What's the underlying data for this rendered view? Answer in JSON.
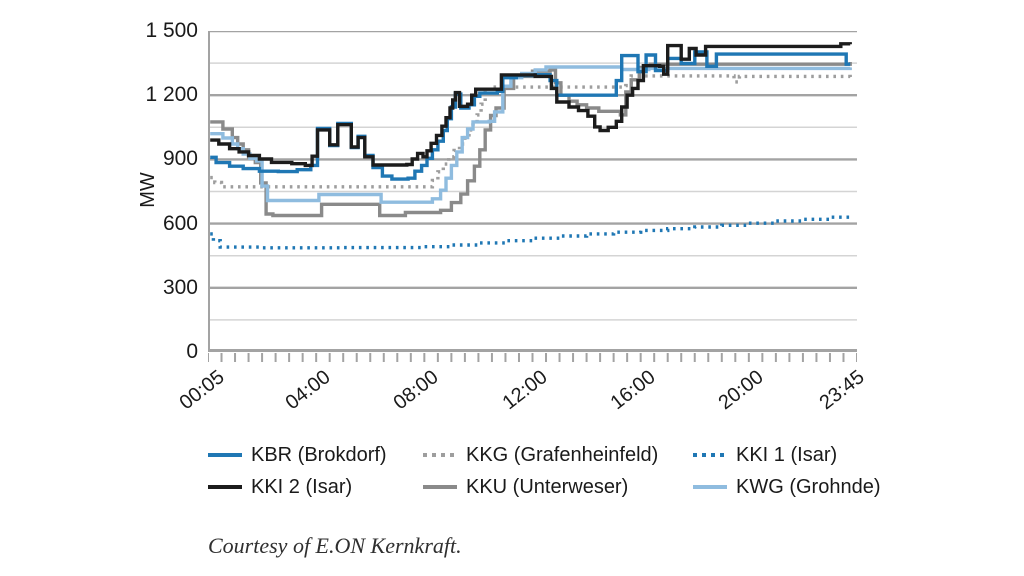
{
  "caption": "Courtesy of E.ON Kernkraft.",
  "chart_data": {
    "type": "line",
    "title": "",
    "xlabel": "",
    "ylabel": "MW",
    "ylim": [
      0,
      1500
    ],
    "xlim_hours": [
      0,
      24
    ],
    "grid": true,
    "legend_position": "bottom",
    "y_major": [
      300,
      600,
      900,
      1200,
      1500
    ],
    "y_minor": [
      150,
      450,
      750,
      1050,
      1350
    ],
    "y_ticks": [
      {
        "label": "1 500",
        "value": 1500
      },
      {
        "label": "1 200",
        "value": 1200
      },
      {
        "label": "900",
        "value": 900
      },
      {
        "label": "600",
        "value": 600
      },
      {
        "label": "300",
        "value": 300
      },
      {
        "label": "0",
        "value": 0
      }
    ],
    "x_tick_interval_minutes": 30,
    "x_labels": [
      {
        "label": "00:05",
        "t": 0.083
      },
      {
        "label": "04:00",
        "t": 4
      },
      {
        "label": "08:00",
        "t": 8
      },
      {
        "label": "12:00",
        "t": 12
      },
      {
        "label": "16:00",
        "t": 16
      },
      {
        "label": "20:00",
        "t": 20
      },
      {
        "label": "23:45",
        "t": 23.75
      }
    ],
    "axis_color": "#a3a3a3",
    "grid_major_color": "#a3a3a3",
    "grid_minor_color": "#d4d4d4",
    "draw_order": [
      "kkg",
      "kku",
      "kwg",
      "kki1",
      "kbr",
      "kki2"
    ],
    "series": [
      {
        "id": "kbr",
        "name": "KBR (Brokdorf)",
        "color": "#1f77b4",
        "style": "solid",
        "points": [
          [
            0.08,
            910
          ],
          [
            0.3,
            885
          ],
          [
            0.8,
            868
          ],
          [
            1.3,
            857
          ],
          [
            1.9,
            845
          ],
          [
            2.6,
            843
          ],
          [
            3.3,
            852
          ],
          [
            3.8,
            872
          ],
          [
            4.05,
            1045
          ],
          [
            4.5,
            965
          ],
          [
            4.8,
            1068
          ],
          [
            5.3,
            955
          ],
          [
            5.55,
            1008
          ],
          [
            5.8,
            918
          ],
          [
            6.1,
            862
          ],
          [
            6.45,
            822
          ],
          [
            6.8,
            808
          ],
          [
            7.4,
            812
          ],
          [
            7.65,
            845
          ],
          [
            7.9,
            872
          ],
          [
            8.1,
            905
          ],
          [
            8.3,
            945
          ],
          [
            8.5,
            985
          ],
          [
            8.7,
            1035
          ],
          [
            8.85,
            1090
          ],
          [
            9.0,
            1145
          ],
          [
            9.15,
            1205
          ],
          [
            9.35,
            1140
          ],
          [
            9.65,
            1155
          ],
          [
            9.85,
            1195
          ],
          [
            10.05,
            1210
          ],
          [
            10.7,
            1218
          ],
          [
            10.9,
            1282
          ],
          [
            11.4,
            1292
          ],
          [
            12.1,
            1296
          ],
          [
            12.65,
            1268
          ],
          [
            12.9,
            1200
          ],
          [
            14.9,
            1200
          ],
          [
            15.1,
            1268
          ],
          [
            15.3,
            1385
          ],
          [
            15.9,
            1310
          ],
          [
            16.2,
            1388
          ],
          [
            16.55,
            1315
          ],
          [
            17.0,
            1372
          ],
          [
            17.5,
            1348
          ],
          [
            18.0,
            1402
          ],
          [
            18.45,
            1335
          ],
          [
            18.8,
            1392
          ],
          [
            23.45,
            1392
          ],
          [
            23.6,
            1345
          ],
          [
            23.75,
            1345
          ]
        ]
      },
      {
        "id": "kkg",
        "name": "KKG (Grafenheinfeld)",
        "color": "#9e9e9e",
        "style": "dotted",
        "points": [
          [
            0.08,
            815
          ],
          [
            0.25,
            792
          ],
          [
            0.5,
            772
          ],
          [
            8.1,
            772
          ],
          [
            8.3,
            802
          ],
          [
            8.5,
            842
          ],
          [
            8.7,
            878
          ],
          [
            8.9,
            912
          ],
          [
            9.1,
            942
          ],
          [
            9.3,
            972
          ],
          [
            9.5,
            1002
          ],
          [
            9.65,
            1038
          ],
          [
            9.8,
            1072
          ],
          [
            9.95,
            1108
          ],
          [
            10.1,
            1158
          ],
          [
            10.25,
            1212
          ],
          [
            10.4,
            1238
          ],
          [
            15.45,
            1245
          ],
          [
            15.65,
            1290
          ],
          [
            19.3,
            1290
          ],
          [
            19.45,
            1262
          ],
          [
            19.65,
            1288
          ],
          [
            23.75,
            1282
          ]
        ]
      },
      {
        "id": "kki1",
        "name": "KKI 1 (Isar)",
        "color": "#1f77b4",
        "style": "dotted",
        "points": [
          [
            0.08,
            552
          ],
          [
            0.2,
            520
          ],
          [
            0.45,
            490
          ],
          [
            2,
            487
          ],
          [
            5,
            488
          ],
          [
            8,
            492
          ],
          [
            9,
            500
          ],
          [
            10,
            510
          ],
          [
            11,
            520
          ],
          [
            12,
            532
          ],
          [
            13,
            542
          ],
          [
            14,
            552
          ],
          [
            15,
            560
          ],
          [
            16,
            568
          ],
          [
            17,
            576
          ],
          [
            18,
            584
          ],
          [
            19,
            592
          ],
          [
            20,
            602
          ],
          [
            21,
            612
          ],
          [
            22,
            620
          ],
          [
            23,
            630
          ],
          [
            23.75,
            642
          ]
        ]
      },
      {
        "id": "kki2",
        "name": "KKI 2 (Isar)",
        "color": "#1c1c1c",
        "style": "solid",
        "points": [
          [
            0.08,
            990
          ],
          [
            0.4,
            972
          ],
          [
            0.8,
            950
          ],
          [
            1.15,
            935
          ],
          [
            1.5,
            918
          ],
          [
            1.9,
            902
          ],
          [
            2.35,
            886
          ],
          [
            3.1,
            880
          ],
          [
            3.6,
            872
          ],
          [
            3.85,
            915
          ],
          [
            4.05,
            1038
          ],
          [
            4.5,
            968
          ],
          [
            4.8,
            1062
          ],
          [
            5.3,
            958
          ],
          [
            5.55,
            1002
          ],
          [
            5.8,
            912
          ],
          [
            6.1,
            874
          ],
          [
            7.35,
            876
          ],
          [
            7.55,
            902
          ],
          [
            7.75,
            928
          ],
          [
            7.95,
            912
          ],
          [
            8.1,
            940
          ],
          [
            8.25,
            975
          ],
          [
            8.45,
            1012
          ],
          [
            8.65,
            1055
          ],
          [
            8.8,
            1095
          ],
          [
            8.95,
            1140
          ],
          [
            9.05,
            1178
          ],
          [
            9.15,
            1212
          ],
          [
            9.3,
            1148
          ],
          [
            9.6,
            1158
          ],
          [
            9.75,
            1200
          ],
          [
            9.9,
            1228
          ],
          [
            10.7,
            1228
          ],
          [
            10.85,
            1295
          ],
          [
            11.5,
            1295
          ],
          [
            12.1,
            1288
          ],
          [
            12.7,
            1232
          ],
          [
            12.9,
            1168
          ],
          [
            13.35,
            1145
          ],
          [
            13.7,
            1128
          ],
          [
            14.05,
            1102
          ],
          [
            14.3,
            1052
          ],
          [
            14.5,
            1035
          ],
          [
            14.8,
            1050
          ],
          [
            15.1,
            1078
          ],
          [
            15.3,
            1145
          ],
          [
            15.5,
            1200
          ],
          [
            15.7,
            1232
          ],
          [
            15.9,
            1268
          ],
          [
            16.1,
            1338
          ],
          [
            16.7,
            1335
          ],
          [
            16.85,
            1298
          ],
          [
            17.0,
            1432
          ],
          [
            17.5,
            1368
          ],
          [
            17.8,
            1418
          ],
          [
            18.05,
            1388
          ],
          [
            18.4,
            1428
          ],
          [
            23.25,
            1428
          ],
          [
            23.4,
            1440
          ],
          [
            23.75,
            1438
          ]
        ]
      },
      {
        "id": "kku",
        "name": "KKU (Unterweser)",
        "color": "#8a8a8a",
        "style": "solid",
        "points": [
          [
            0.08,
            1075
          ],
          [
            0.55,
            1042
          ],
          [
            0.9,
            1002
          ],
          [
            1.1,
            972
          ],
          [
            1.3,
            945
          ],
          [
            1.5,
            912
          ],
          [
            1.75,
            885
          ],
          [
            1.95,
            790
          ],
          [
            2.15,
            645
          ],
          [
            2.4,
            638
          ],
          [
            4.2,
            690
          ],
          [
            6.35,
            638
          ],
          [
            7.3,
            652
          ],
          [
            8.6,
            662
          ],
          [
            9.0,
            698
          ],
          [
            9.35,
            738
          ],
          [
            9.6,
            800
          ],
          [
            9.85,
            868
          ],
          [
            10.05,
            945
          ],
          [
            10.25,
            1038
          ],
          [
            10.45,
            1105
          ],
          [
            10.65,
            1140
          ],
          [
            10.95,
            1232
          ],
          [
            11.3,
            1288
          ],
          [
            12.0,
            1312
          ],
          [
            12.65,
            1318
          ],
          [
            12.85,
            1258
          ],
          [
            13.05,
            1200
          ],
          [
            13.35,
            1172
          ],
          [
            13.65,
            1155
          ],
          [
            14.0,
            1140
          ],
          [
            14.45,
            1125
          ],
          [
            15.25,
            1108
          ],
          [
            15.45,
            1215
          ],
          [
            15.65,
            1272
          ],
          [
            15.95,
            1330
          ],
          [
            16.35,
            1345
          ],
          [
            23.75,
            1355
          ]
        ]
      },
      {
        "id": "kwg",
        "name": "KWG (Grohnde)",
        "color": "#8fbcdf",
        "style": "solid",
        "points": [
          [
            0.08,
            1020
          ],
          [
            0.55,
            1000
          ],
          [
            0.9,
            972
          ],
          [
            1.1,
            950
          ],
          [
            1.3,
            925
          ],
          [
            1.55,
            905
          ],
          [
            1.8,
            893
          ],
          [
            2.0,
            775
          ],
          [
            2.2,
            708
          ],
          [
            4.1,
            736
          ],
          [
            6.4,
            700
          ],
          [
            8.3,
            716
          ],
          [
            8.6,
            756
          ],
          [
            8.8,
            812
          ],
          [
            9.0,
            872
          ],
          [
            9.2,
            935
          ],
          [
            9.4,
            1002
          ],
          [
            9.6,
            1042
          ],
          [
            9.8,
            1075
          ],
          [
            10.4,
            1078
          ],
          [
            10.6,
            1122
          ],
          [
            10.9,
            1242
          ],
          [
            11.2,
            1282
          ],
          [
            11.6,
            1302
          ],
          [
            12.1,
            1318
          ],
          [
            12.5,
            1332
          ],
          [
            15.3,
            1320
          ],
          [
            16.3,
            1325
          ],
          [
            23.75,
            1330
          ]
        ]
      }
    ]
  }
}
